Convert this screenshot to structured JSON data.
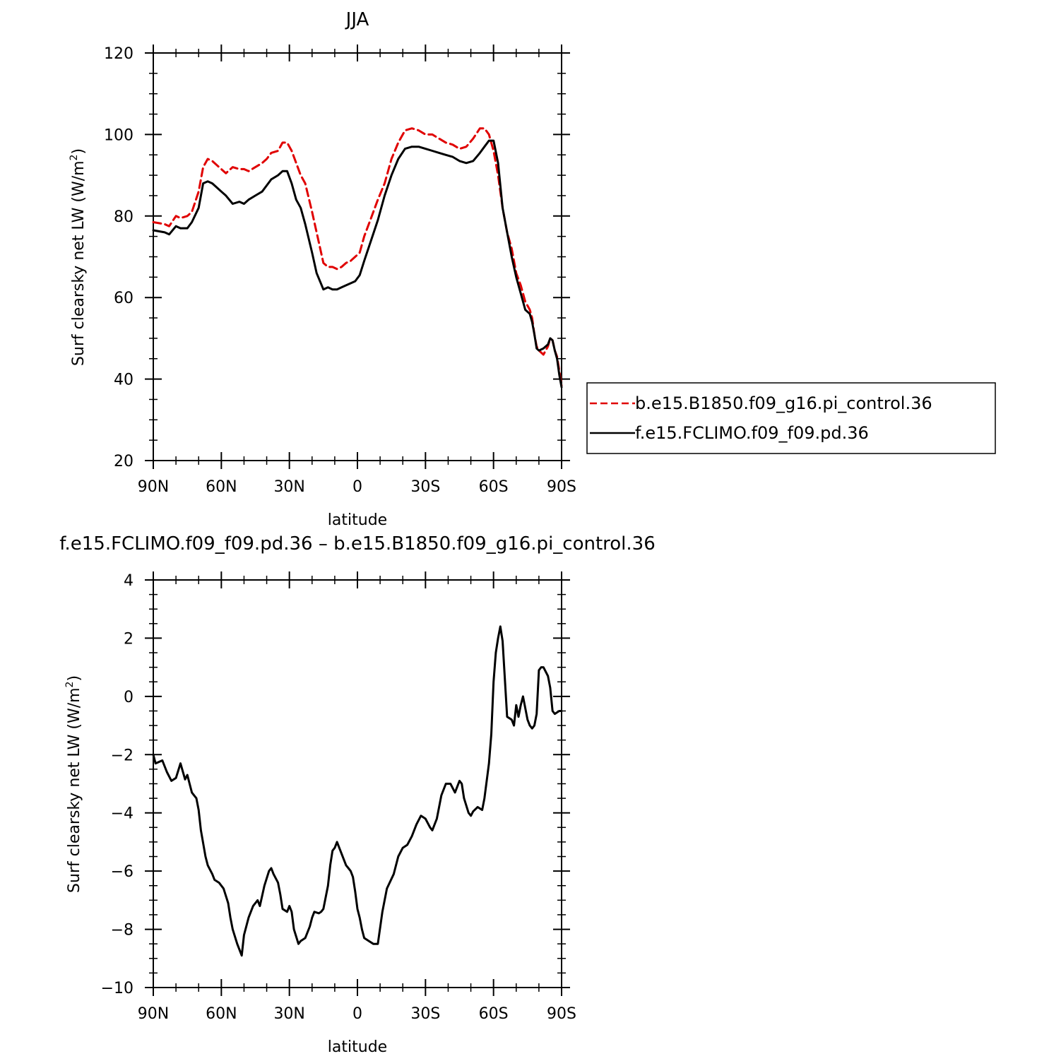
{
  "chart_data": [
    {
      "type": "line",
      "title": "JJA",
      "xlabel": "latitude",
      "ylabel": "Surf clearsky net LW (W/m",
      "ylabel_sup": "2",
      "ylabel_close": ")",
      "x_tick_labels": [
        "90N",
        "60N",
        "30N",
        "0",
        "30S",
        "60S",
        "90S"
      ],
      "x_ticks": [
        -90,
        -60,
        -30,
        0,
        30,
        60,
        90
      ],
      "xlim": [
        -90,
        90
      ],
      "ylim": [
        20,
        120
      ],
      "y_ticks": [
        20,
        40,
        60,
        80,
        100,
        120
      ],
      "y_tick_labels": [
        "20",
        "40",
        "60",
        "80",
        "100",
        "120"
      ],
      "legend_position": "right",
      "series": [
        {
          "name": "b.e15.B1850.f09_g16.pi_control.36",
          "color": "#e00000",
          "dash": "dashed",
          "x": [
            -90,
            -85,
            -83,
            -80,
            -78,
            -75,
            -73,
            -70,
            -68,
            -66,
            -64,
            -62,
            -60,
            -58,
            -55,
            -52,
            -50,
            -48,
            -45,
            -42,
            -40,
            -38,
            -35,
            -33,
            -31,
            -29,
            -27,
            -25,
            -23,
            -20,
            -18,
            -15,
            -13,
            -11,
            -9,
            -7,
            -5,
            -3,
            -1,
            1,
            3,
            6,
            9,
            12,
            15,
            18,
            21,
            24,
            27,
            30,
            33,
            36,
            39,
            42,
            45,
            48,
            51,
            54,
            56,
            58,
            60,
            62,
            64,
            66,
            68,
            70,
            72,
            74,
            76,
            77,
            78,
            79,
            80,
            82,
            84,
            85,
            86,
            87,
            88,
            89,
            90
          ],
          "y": [
            78.5,
            78,
            77.5,
            80,
            79.5,
            80,
            81,
            86,
            92,
            94,
            93.5,
            92.5,
            91.5,
            90.5,
            92,
            91.5,
            91.5,
            91,
            92,
            93,
            94,
            95.5,
            96,
            98,
            98,
            96,
            93,
            90,
            88,
            81,
            76,
            68.5,
            67.5,
            67.5,
            67,
            67.5,
            68.5,
            69,
            70,
            71,
            75,
            79.5,
            84,
            88,
            94,
            98,
            101,
            101.5,
            101,
            100,
            100,
            99,
            98,
            97.5,
            96.5,
            97,
            99,
            101.5,
            101.5,
            100,
            96,
            90,
            82,
            76,
            72,
            66,
            63,
            59,
            57,
            55,
            51,
            48,
            47,
            46,
            48,
            50,
            49.5,
            47,
            45.5,
            42,
            38.5
          ]
        },
        {
          "name": "f.e15.FCLIMO.f09_f09.pd.36",
          "color": "#000000",
          "dash": "solid",
          "x": [
            -90,
            -85,
            -83,
            -80,
            -78,
            -75,
            -73,
            -70,
            -68,
            -66,
            -64,
            -62,
            -60,
            -58,
            -55,
            -52,
            -50,
            -48,
            -45,
            -42,
            -40,
            -38,
            -35,
            -33,
            -31,
            -29,
            -27,
            -25,
            -23,
            -20,
            -18,
            -15,
            -13,
            -11,
            -9,
            -7,
            -5,
            -3,
            -1,
            1,
            3,
            6,
            9,
            12,
            15,
            18,
            21,
            24,
            27,
            30,
            33,
            36,
            39,
            42,
            45,
            48,
            51,
            54,
            56,
            58,
            60,
            62,
            64,
            66,
            68,
            70,
            72,
            74,
            76,
            77,
            78,
            79,
            80,
            82,
            84,
            85,
            86,
            87,
            88,
            89,
            90
          ],
          "y": [
            76.5,
            76,
            75.5,
            77.5,
            77,
            77,
            78.5,
            82,
            88,
            88.5,
            88,
            87,
            86,
            85,
            83,
            83.5,
            83,
            84,
            85,
            86,
            87.5,
            89,
            90,
            91,
            91,
            88,
            84,
            82,
            78,
            71,
            66,
            62,
            62.5,
            62,
            62,
            62.5,
            63,
            63.5,
            64,
            65.5,
            69,
            74,
            79,
            85,
            90,
            94,
            96.5,
            97,
            97,
            96.5,
            96,
            95.5,
            95,
            94.5,
            93.5,
            93,
            93.5,
            95.5,
            97,
            98.5,
            98.5,
            93,
            82,
            76,
            70,
            65,
            61,
            57,
            56,
            54,
            51,
            47.5,
            47,
            47.5,
            48.5,
            50,
            49.5,
            47,
            45,
            41,
            38
          ]
        }
      ]
    },
    {
      "type": "line",
      "title": "f.e15.FCLIMO.f09_f09.pd.36 – b.e15.B1850.f09_g16.pi_control.36",
      "xlabel": "latitude",
      "ylabel": "Surf clearsky net LW (W/m",
      "ylabel_sup": "2",
      "ylabel_close": ")",
      "x_tick_labels": [
        "90N",
        "60N",
        "30N",
        "0",
        "30S",
        "60S",
        "90S"
      ],
      "x_ticks": [
        -90,
        -60,
        -30,
        0,
        30,
        60,
        90
      ],
      "xlim": [
        -90,
        90
      ],
      "ylim": [
        -10,
        4
      ],
      "y_ticks": [
        -10,
        -8,
        -6,
        -4,
        -2,
        0,
        2,
        4
      ],
      "y_tick_labels": [
        "−10",
        "−8",
        "−6",
        "−4",
        "−2",
        "0",
        "2",
        "4"
      ],
      "series": [
        {
          "color": "#000000",
          "dash": "solid",
          "x": [
            -90,
            -89,
            -86,
            -84,
            -82,
            -80,
            -78,
            -76,
            -75,
            -73,
            -71,
            -70,
            -69,
            -67,
            -66,
            -64,
            -63,
            -61,
            -59,
            -57,
            -56,
            -55,
            -53,
            -51,
            -50,
            -48,
            -46,
            -44,
            -43,
            -41,
            -39,
            -38,
            -37,
            -35,
            -34,
            -33,
            -31,
            -30,
            -29,
            -28,
            -26,
            -25,
            -23,
            -21,
            -20,
            -19,
            -17,
            -16,
            -15,
            -13,
            -12,
            -11,
            -10,
            -9,
            -8,
            -7,
            -6,
            -5,
            -4,
            -3,
            -2,
            -1,
            0,
            1,
            2,
            3,
            5,
            7,
            9,
            11,
            13,
            16,
            18,
            20,
            22,
            24,
            26,
            28,
            30,
            32,
            33,
            35,
            37,
            39,
            41,
            43,
            45,
            46,
            47,
            49,
            50,
            51,
            53,
            55,
            56,
            58,
            59,
            60,
            61,
            62,
            63,
            64,
            66,
            68,
            69,
            70,
            71,
            72,
            73,
            75,
            76,
            77,
            78,
            79,
            80,
            81,
            82,
            84,
            85,
            86,
            87,
            88,
            89,
            90
          ],
          "y": [
            -2,
            -2.3,
            -2.2,
            -2.6,
            -2.9,
            -2.8,
            -2.3,
            -2.85,
            -2.7,
            -3.3,
            -3.5,
            -3.9,
            -4.6,
            -5.5,
            -5.8,
            -6.1,
            -6.3,
            -6.4,
            -6.6,
            -7.1,
            -7.6,
            -8.0,
            -8.5,
            -8.9,
            -8.2,
            -7.6,
            -7.2,
            -7.0,
            -7.2,
            -6.5,
            -6.0,
            -5.9,
            -6.1,
            -6.4,
            -6.8,
            -7.3,
            -7.4,
            -7.2,
            -7.4,
            -8.0,
            -8.5,
            -8.4,
            -8.3,
            -7.9,
            -7.6,
            -7.4,
            -7.45,
            -7.4,
            -7.3,
            -6.5,
            -5.8,
            -5.3,
            -5.2,
            -5.0,
            -5.2,
            -5.4,
            -5.6,
            -5.8,
            -5.9,
            -6.0,
            -6.2,
            -6.7,
            -7.3,
            -7.6,
            -8.0,
            -8.3,
            -8.4,
            -8.5,
            -8.5,
            -7.4,
            -6.6,
            -6.1,
            -5.5,
            -5.2,
            -5.1,
            -4.8,
            -4.4,
            -4.1,
            -4.2,
            -4.5,
            -4.6,
            -4.2,
            -3.4,
            -3.0,
            -3.0,
            -3.3,
            -2.9,
            -3.0,
            -3.5,
            -4.0,
            -4.1,
            -3.95,
            -3.8,
            -3.9,
            -3.5,
            -2.3,
            -1.3,
            0.5,
            1.5,
            2.0,
            2.4,
            1.9,
            -0.7,
            -0.8,
            -1.0,
            -0.3,
            -0.7,
            -0.3,
            0,
            -0.8,
            -1.0,
            -1.1,
            -1.0,
            -0.6,
            0.9,
            1.0,
            1.0,
            0.7,
            0.3,
            -0.5,
            -0.6,
            -0.55,
            -0.5,
            -0.5
          ]
        }
      ]
    }
  ]
}
